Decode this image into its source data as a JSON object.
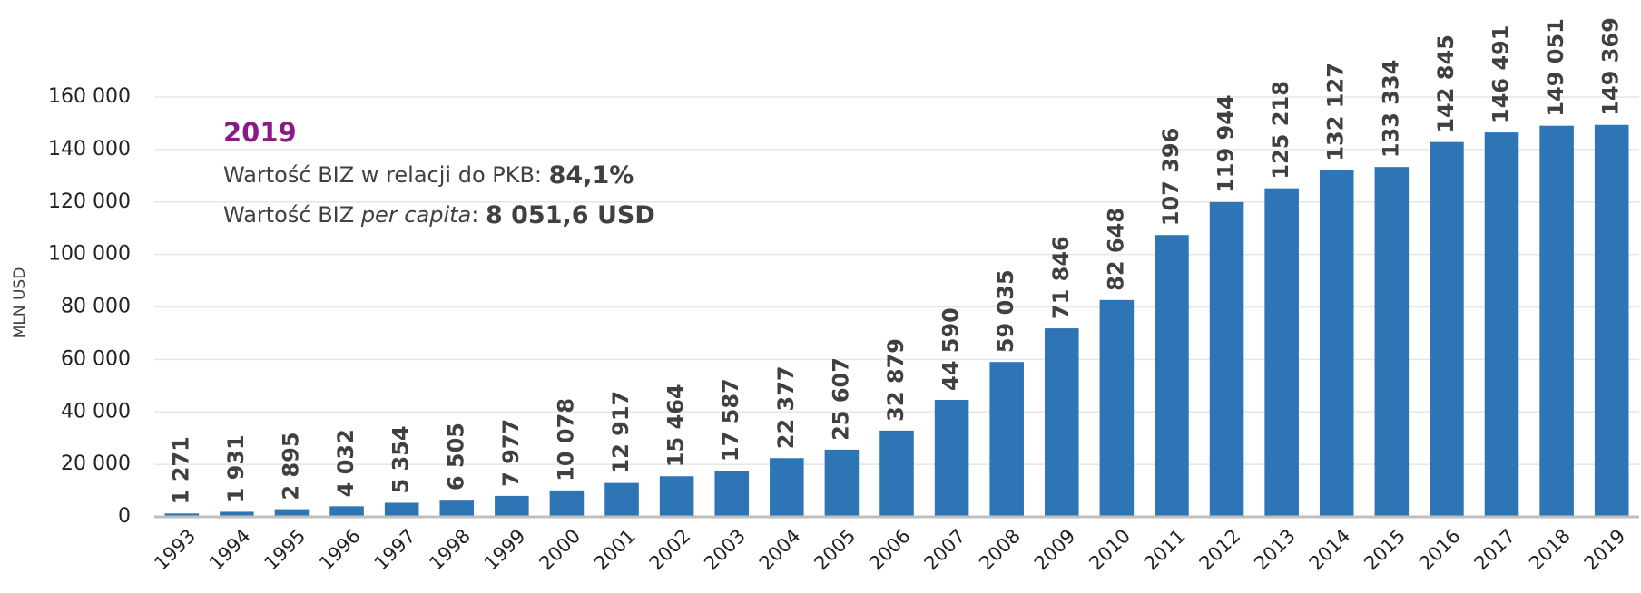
{
  "chart_data": {
    "type": "bar",
    "y_label": "MLN USD",
    "categories": [
      "1993",
      "1994",
      "1995",
      "1996",
      "1997",
      "1998",
      "1999",
      "2000",
      "2001",
      "2002",
      "2003",
      "2004",
      "2005",
      "2006",
      "2007",
      "2008",
      "2009",
      "2010",
      "2011",
      "2012",
      "2013",
      "2014",
      "2015",
      "2016",
      "2017",
      "2018",
      "2019"
    ],
    "values": [
      1271,
      1931,
      2895,
      4032,
      5354,
      6505,
      7977,
      10078,
      12917,
      15464,
      17587,
      22377,
      25607,
      32879,
      44590,
      59035,
      71846,
      82648,
      107396,
      119944,
      125218,
      132127,
      133334,
      142845,
      146491,
      149051,
      149369
    ],
    "value_labels": [
      "1 271",
      "1 931",
      "2 895",
      "4 032",
      "5 354",
      "6 505",
      "7 977",
      "10 078",
      "12 917",
      "15 464",
      "17 587",
      "22 377",
      "25 607",
      "32 879",
      "44 590",
      "59 035",
      "71 846",
      "82 648",
      "107 396",
      "119 944",
      "125 218",
      "132 127",
      "133 334",
      "142 845",
      "146 491",
      "149 051",
      "149 369"
    ],
    "color": "#2e75b6",
    "ylim": [
      0,
      160000
    ],
    "yticks": [
      0,
      {
        "value": 20000,
        "label": "20 000"
      },
      {
        "value": 40000,
        "label": "40 000"
      },
      {
        "value": 60000,
        "label": "60 000"
      },
      {
        "value": 80000,
        "label": "80 000"
      },
      {
        "value": 100000,
        "label": "100 000"
      },
      {
        "value": 120000,
        "label": "120 000"
      },
      {
        "value": 140000,
        "label": "140 000"
      },
      {
        "value": 160000,
        "label": "160 000"
      }
    ],
    "grid": true,
    "annotation": {
      "heading": "2019",
      "line1": {
        "text": "Wartość BIZ w relacji do PKB: ",
        "value": "84,1%"
      },
      "line2": {
        "text": "Wartość BIZ ",
        "italic": "per capita",
        "sep": ": ",
        "value": "8 051,6 USD"
      }
    }
  }
}
